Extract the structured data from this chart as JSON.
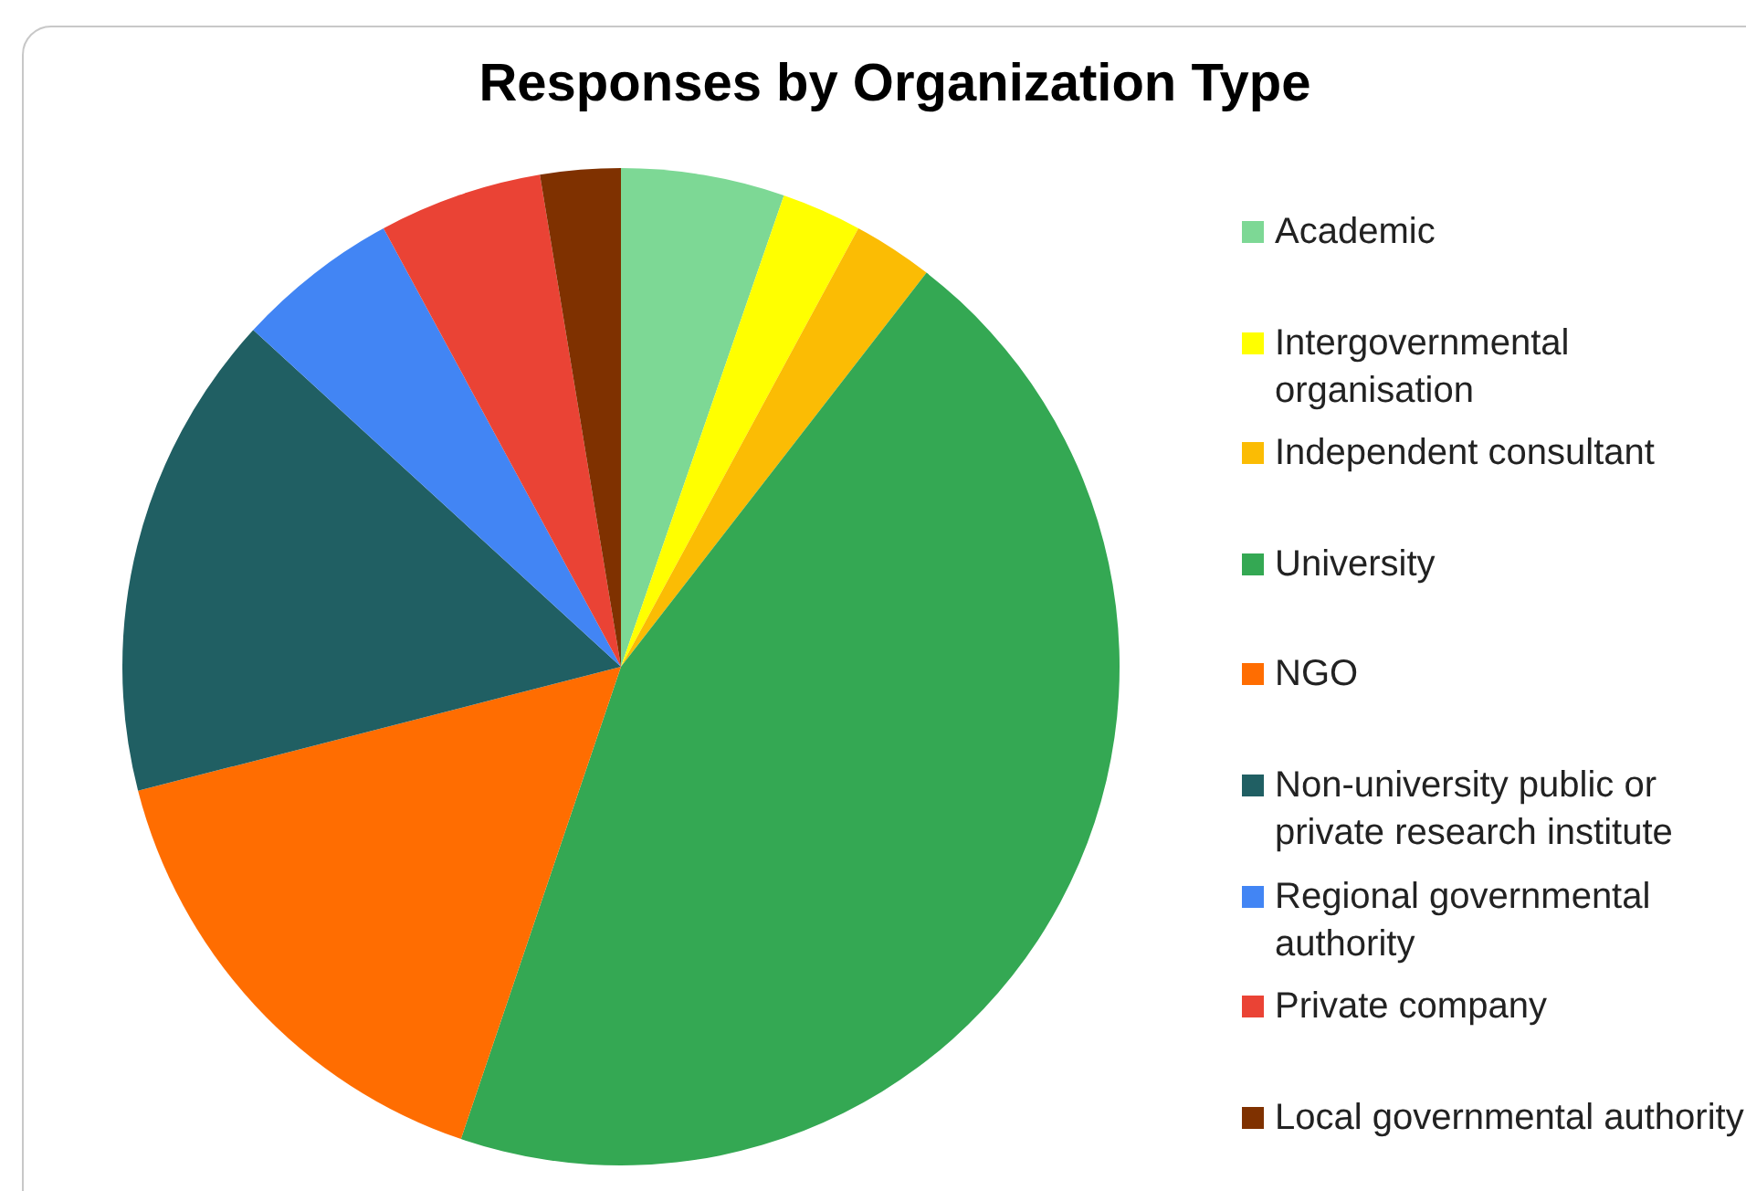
{
  "chart_data": {
    "type": "pie",
    "title": "Responses by Organization Type",
    "categories": [
      "Academic",
      "Intergovernmental organisation",
      "Independent consultant",
      "University",
      "NGO",
      "Non-university public or private research institute",
      "Regional governmental authority",
      "Private company",
      "Local governmental authority"
    ],
    "values": [
      5.3,
      2.6,
      2.6,
      44.7,
      15.8,
      15.8,
      5.3,
      5.3,
      2.6
    ],
    "colors": [
      "#7dd895",
      "#ffff00",
      "#fbbc04",
      "#34a853",
      "#ff6d01",
      "#205f63",
      "#4285f4",
      "#ea4335",
      "#7f3100"
    ],
    "legend": "right"
  }
}
